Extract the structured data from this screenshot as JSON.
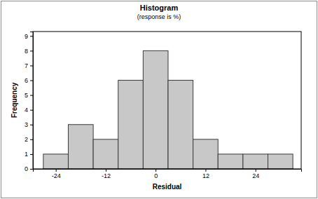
{
  "chart_data": {
    "type": "histogram",
    "title": "Histogram",
    "subtitle": "(response is %)",
    "x_label": "Residual",
    "y_label": "Frequency",
    "bins": [
      -27,
      -21,
      -15,
      -9,
      -3,
      3,
      9,
      15,
      21,
      27,
      33
    ],
    "values": [
      1,
      3,
      2,
      6,
      8,
      6,
      2,
      1,
      1,
      1
    ],
    "color": "#c8c8c8",
    "xlim": [
      -29.5,
      35
    ],
    "ylim": [
      0,
      9.3
    ],
    "xticks": [
      -24,
      -12,
      0,
      12,
      24
    ],
    "yticks": [
      0,
      1,
      2,
      3,
      4,
      5,
      6,
      7,
      8,
      9
    ],
    "grid": false
  }
}
